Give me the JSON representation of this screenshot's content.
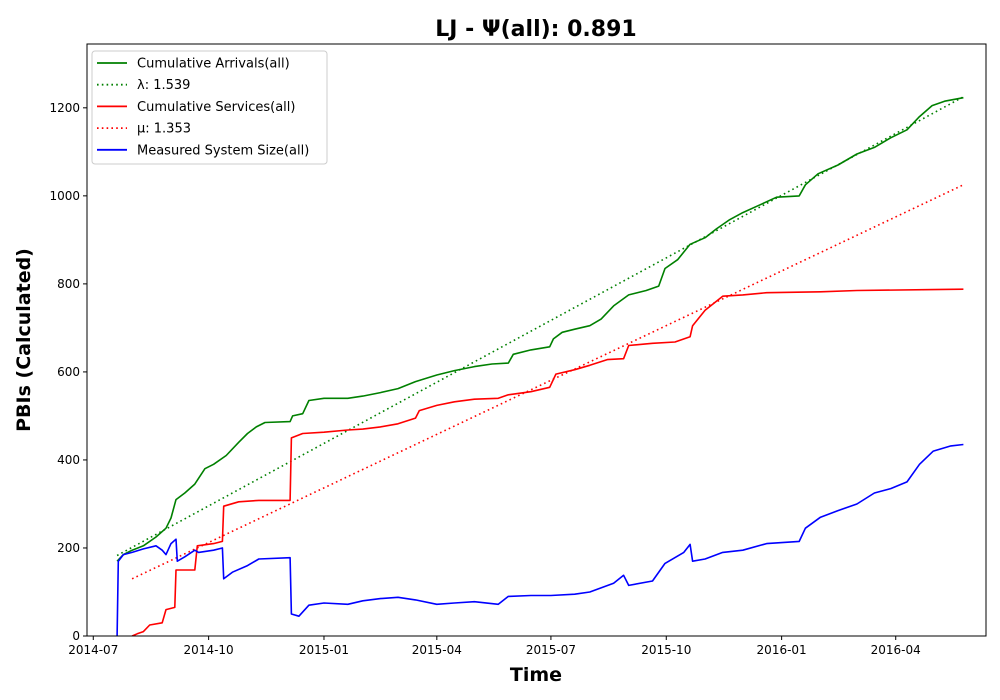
{
  "chart_data": {
    "type": "line",
    "title": "LJ -  Ψ(all): 0.891",
    "xlabel": "Time",
    "ylabel": "PBIs (Calculated)",
    "xlim": [
      "2014-06-26",
      "2016-06-12"
    ],
    "ylim": [
      0,
      1345
    ],
    "x_ticks": [
      "2014-07",
      "2014-10",
      "2015-01",
      "2015-04",
      "2015-07",
      "2015-10",
      "2016-01",
      "2016-04"
    ],
    "y_ticks": [
      0,
      200,
      400,
      600,
      800,
      1000,
      1200
    ],
    "grid": false,
    "legend_position": "top-left",
    "series": [
      {
        "name": "Cumulative Arrivals(all)",
        "color": "#008000",
        "style": "solid",
        "points": [
          [
            "2014-07-20",
            170
          ],
          [
            "2014-07-25",
            185
          ],
          [
            "2014-08-01",
            195
          ],
          [
            "2014-08-10",
            205
          ],
          [
            "2014-08-20",
            225
          ],
          [
            "2014-08-28",
            245
          ],
          [
            "2014-09-01",
            268
          ],
          [
            "2014-09-05",
            310
          ],
          [
            "2014-09-12",
            325
          ],
          [
            "2014-09-20",
            345
          ],
          [
            "2014-09-28",
            380
          ],
          [
            "2014-10-05",
            390
          ],
          [
            "2014-10-15",
            410
          ],
          [
            "2014-10-25",
            440
          ],
          [
            "2014-11-01",
            460
          ],
          [
            "2014-11-08",
            475
          ],
          [
            "2014-11-15",
            485
          ],
          [
            "2014-12-05",
            487
          ],
          [
            "2014-12-07",
            500
          ],
          [
            "2014-12-15",
            505
          ],
          [
            "2014-12-20",
            535
          ],
          [
            "2015-01-01",
            540
          ],
          [
            "2015-01-20",
            540
          ],
          [
            "2015-02-01",
            545
          ],
          [
            "2015-02-15",
            553
          ],
          [
            "2015-03-01",
            562
          ],
          [
            "2015-03-15",
            578
          ],
          [
            "2015-04-01",
            593
          ],
          [
            "2015-04-15",
            603
          ],
          [
            "2015-05-01",
            612
          ],
          [
            "2015-05-15",
            618
          ],
          [
            "2015-05-28",
            620
          ],
          [
            "2015-06-01",
            640
          ],
          [
            "2015-06-15",
            650
          ],
          [
            "2015-06-30",
            657
          ],
          [
            "2015-07-03",
            675
          ],
          [
            "2015-07-10",
            690
          ],
          [
            "2015-07-20",
            697
          ],
          [
            "2015-08-01",
            705
          ],
          [
            "2015-08-10",
            720
          ],
          [
            "2015-08-20",
            750
          ],
          [
            "2015-09-01",
            775
          ],
          [
            "2015-09-15",
            785
          ],
          [
            "2015-09-25",
            795
          ],
          [
            "2015-09-30",
            835
          ],
          [
            "2015-10-10",
            855
          ],
          [
            "2015-10-20",
            890
          ],
          [
            "2015-11-01",
            905
          ],
          [
            "2015-11-10",
            925
          ],
          [
            "2015-11-20",
            945
          ],
          [
            "2015-12-01",
            962
          ],
          [
            "2015-12-15",
            980
          ],
          [
            "2015-12-28",
            997
          ],
          [
            "2016-01-15",
            1000
          ],
          [
            "2016-01-20",
            1025
          ],
          [
            "2016-01-30",
            1050
          ],
          [
            "2016-02-15",
            1070
          ],
          [
            "2016-03-01",
            1095
          ],
          [
            "2016-03-15",
            1110
          ],
          [
            "2016-03-28",
            1132
          ],
          [
            "2016-04-10",
            1150
          ],
          [
            "2016-04-20",
            1180
          ],
          [
            "2016-04-30",
            1205
          ],
          [
            "2016-05-10",
            1215
          ],
          [
            "2016-05-25",
            1223
          ]
        ]
      },
      {
        "name": "λ: 1.539",
        "color": "#008000",
        "style": "dotted",
        "points": [
          [
            "2014-07-20",
            183
          ],
          [
            "2016-05-25",
            1225
          ]
        ]
      },
      {
        "name": "Cumulative Services(all)",
        "color": "#ff0000",
        "style": "solid",
        "points": [
          [
            "2014-08-01",
            0
          ],
          [
            "2014-08-05",
            5
          ],
          [
            "2014-08-10",
            10
          ],
          [
            "2014-08-15",
            25
          ],
          [
            "2014-08-25",
            30
          ],
          [
            "2014-08-28",
            60
          ],
          [
            "2014-09-04",
            65
          ],
          [
            "2014-09-05",
            150
          ],
          [
            "2014-09-20",
            150
          ],
          [
            "2014-09-22",
            205
          ],
          [
            "2014-10-05",
            210
          ],
          [
            "2014-10-12",
            215
          ],
          [
            "2014-10-13",
            295
          ],
          [
            "2014-10-25",
            305
          ],
          [
            "2014-11-10",
            308
          ],
          [
            "2014-12-05",
            308
          ],
          [
            "2014-12-06",
            450
          ],
          [
            "2014-12-15",
            460
          ],
          [
            "2015-01-01",
            463
          ],
          [
            "2015-01-20",
            468
          ],
          [
            "2015-02-01",
            470
          ],
          [
            "2015-02-15",
            475
          ],
          [
            "2015-03-01",
            482
          ],
          [
            "2015-03-15",
            495
          ],
          [
            "2015-03-18",
            512
          ],
          [
            "2015-04-01",
            524
          ],
          [
            "2015-04-15",
            532
          ],
          [
            "2015-05-01",
            538
          ],
          [
            "2015-05-20",
            540
          ],
          [
            "2015-05-28",
            548
          ],
          [
            "2015-06-15",
            555
          ],
          [
            "2015-06-30",
            565
          ],
          [
            "2015-07-05",
            595
          ],
          [
            "2015-07-20",
            605
          ],
          [
            "2015-08-01",
            615
          ],
          [
            "2015-08-15",
            628
          ],
          [
            "2015-08-28",
            630
          ],
          [
            "2015-09-01",
            660
          ],
          [
            "2015-09-20",
            665
          ],
          [
            "2015-10-08",
            668
          ],
          [
            "2015-10-20",
            680
          ],
          [
            "2015-10-22",
            705
          ],
          [
            "2015-11-01",
            740
          ],
          [
            "2015-11-15",
            772
          ],
          [
            "2015-12-01",
            775
          ],
          [
            "2015-12-20",
            780
          ],
          [
            "2016-02-01",
            782
          ],
          [
            "2016-03-01",
            785
          ],
          [
            "2016-05-01",
            787
          ],
          [
            "2016-05-25",
            788
          ]
        ]
      },
      {
        "name": "μ: 1.353",
        "color": "#ff0000",
        "style": "dotted",
        "points": [
          [
            "2014-08-01",
            130
          ],
          [
            "2016-05-25",
            1025
          ]
        ]
      },
      {
        "name": "Measured System Size(all)",
        "color": "#0000ff",
        "style": "solid",
        "points": [
          [
            "2014-07-20",
            0
          ],
          [
            "2014-07-21",
            170
          ],
          [
            "2014-07-25",
            185
          ],
          [
            "2014-08-01",
            190
          ],
          [
            "2014-08-10",
            198
          ],
          [
            "2014-08-20",
            205
          ],
          [
            "2014-08-25",
            195
          ],
          [
            "2014-08-28",
            185
          ],
          [
            "2014-09-01",
            210
          ],
          [
            "2014-09-05",
            220
          ],
          [
            "2014-09-06",
            170
          ],
          [
            "2014-09-12",
            180
          ],
          [
            "2014-09-20",
            195
          ],
          [
            "2014-09-23",
            190
          ],
          [
            "2014-10-05",
            195
          ],
          [
            "2014-10-12",
            200
          ],
          [
            "2014-10-13",
            130
          ],
          [
            "2014-10-20",
            145
          ],
          [
            "2014-11-01",
            160
          ],
          [
            "2014-11-10",
            175
          ],
          [
            "2014-12-05",
            178
          ],
          [
            "2014-12-06",
            50
          ],
          [
            "2014-12-12",
            45
          ],
          [
            "2014-12-20",
            70
          ],
          [
            "2015-01-01",
            75
          ],
          [
            "2015-01-20",
            72
          ],
          [
            "2015-02-01",
            80
          ],
          [
            "2015-02-15",
            85
          ],
          [
            "2015-03-01",
            88
          ],
          [
            "2015-03-15",
            82
          ],
          [
            "2015-04-01",
            72
          ],
          [
            "2015-04-15",
            75
          ],
          [
            "2015-05-01",
            78
          ],
          [
            "2015-05-20",
            72
          ],
          [
            "2015-05-28",
            90
          ],
          [
            "2015-06-15",
            92
          ],
          [
            "2015-07-01",
            92
          ],
          [
            "2015-07-20",
            95
          ],
          [
            "2015-08-01",
            100
          ],
          [
            "2015-08-20",
            120
          ],
          [
            "2015-08-28",
            138
          ],
          [
            "2015-09-01",
            115
          ],
          [
            "2015-09-20",
            125
          ],
          [
            "2015-09-30",
            165
          ],
          [
            "2015-10-15",
            190
          ],
          [
            "2015-10-20",
            208
          ],
          [
            "2015-10-22",
            170
          ],
          [
            "2015-11-01",
            175
          ],
          [
            "2015-11-15",
            190
          ],
          [
            "2015-12-01",
            195
          ],
          [
            "2015-12-20",
            210
          ],
          [
            "2016-01-15",
            215
          ],
          [
            "2016-01-20",
            245
          ],
          [
            "2016-02-01",
            270
          ],
          [
            "2016-02-15",
            285
          ],
          [
            "2016-03-01",
            300
          ],
          [
            "2016-03-15",
            325
          ],
          [
            "2016-03-28",
            335
          ],
          [
            "2016-04-10",
            350
          ],
          [
            "2016-04-20",
            390
          ],
          [
            "2016-05-01",
            420
          ],
          [
            "2016-05-15",
            432
          ],
          [
            "2016-05-25",
            435
          ]
        ]
      }
    ]
  }
}
